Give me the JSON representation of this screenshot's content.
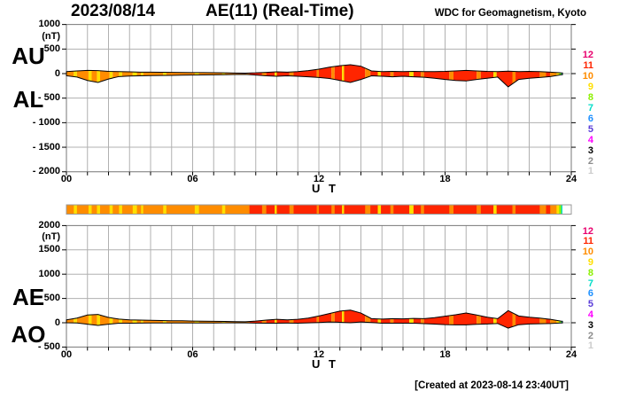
{
  "header": {
    "date": "2023/08/14",
    "title": "AE(11) (Real-Time)",
    "credit": "WDC for Geomagnetism, Kyoto"
  },
  "footer": {
    "created": "[Created at 2023-08-14 23:40UT]"
  },
  "station_legend": {
    "counts": [
      12,
      11,
      10,
      9,
      8,
      7,
      6,
      5,
      4,
      3,
      2,
      1
    ]
  },
  "station_colors": {
    "12": "#e8006e",
    "11": "#ff2500",
    "10": "#ff8c00",
    "9": "#ffdf00",
    "8": "#8cf000",
    "7": "#00ddc8",
    "6": "#1e90ff",
    "5": "#5a3cd8",
    "4": "#ff00ff",
    "3": "#000000",
    "2": "#8c8c8c",
    "1": "#cccccc",
    "0": "#ffffff"
  },
  "stations_timeline": [
    [
      0.0,
      0.35,
      10
    ],
    [
      0.35,
      0.5,
      9
    ],
    [
      0.5,
      1.05,
      10
    ],
    [
      1.05,
      1.2,
      9
    ],
    [
      1.2,
      1.45,
      10
    ],
    [
      1.45,
      1.6,
      9
    ],
    [
      1.6,
      2.05,
      10
    ],
    [
      2.05,
      2.2,
      9
    ],
    [
      2.2,
      2.5,
      10
    ],
    [
      2.5,
      2.65,
      9
    ],
    [
      2.65,
      3.15,
      10
    ],
    [
      3.15,
      3.35,
      9
    ],
    [
      3.35,
      3.55,
      10
    ],
    [
      3.55,
      3.65,
      9
    ],
    [
      3.65,
      4.6,
      10
    ],
    [
      4.6,
      4.75,
      9
    ],
    [
      4.75,
      6.1,
      10
    ],
    [
      6.1,
      6.3,
      9
    ],
    [
      6.3,
      7.4,
      10
    ],
    [
      7.4,
      7.55,
      9
    ],
    [
      7.55,
      8.7,
      10
    ],
    [
      8.7,
      9.3,
      11
    ],
    [
      9.3,
      9.5,
      10
    ],
    [
      9.5,
      9.9,
      11
    ],
    [
      9.9,
      10.0,
      9
    ],
    [
      10.0,
      10.6,
      11
    ],
    [
      10.6,
      10.8,
      10
    ],
    [
      10.8,
      11.9,
      11
    ],
    [
      11.9,
      12.0,
      10
    ],
    [
      12.0,
      12.6,
      11
    ],
    [
      12.6,
      12.75,
      10
    ],
    [
      12.75,
      13.1,
      11
    ],
    [
      13.1,
      13.2,
      9
    ],
    [
      13.2,
      14.2,
      11
    ],
    [
      14.2,
      14.45,
      10
    ],
    [
      14.45,
      14.8,
      11
    ],
    [
      14.8,
      14.95,
      9
    ],
    [
      14.95,
      15.4,
      11
    ],
    [
      15.4,
      15.55,
      10
    ],
    [
      15.55,
      16.3,
      11
    ],
    [
      16.3,
      16.5,
      9
    ],
    [
      16.5,
      16.85,
      11
    ],
    [
      16.85,
      17.0,
      10
    ],
    [
      17.0,
      18.2,
      11
    ],
    [
      18.2,
      18.4,
      10
    ],
    [
      18.4,
      19.5,
      11
    ],
    [
      19.5,
      19.7,
      10
    ],
    [
      19.7,
      20.3,
      11
    ],
    [
      20.3,
      20.45,
      9
    ],
    [
      20.45,
      21.2,
      11
    ],
    [
      21.2,
      21.35,
      10
    ],
    [
      21.35,
      22.5,
      11
    ],
    [
      22.5,
      22.8,
      10
    ],
    [
      22.8,
      23.0,
      11
    ],
    [
      23.0,
      23.3,
      10
    ],
    [
      23.3,
      23.42,
      9
    ],
    [
      23.42,
      23.52,
      8
    ],
    [
      23.52,
      23.58,
      7
    ],
    [
      23.58,
      24.0,
      0
    ]
  ],
  "chart_data": [
    {
      "type": "area",
      "name": "AU-AL",
      "left_labels": [
        "AU",
        "AL"
      ],
      "unit": "(nT)",
      "xlabel": "U T",
      "x_ticks": [
        "00",
        "06",
        "12",
        "18",
        "24"
      ],
      "x_tick_values": [
        0,
        6,
        12,
        18,
        24
      ],
      "x_range": [
        0,
        24
      ],
      "y_ticks": [
        "1000",
        "500",
        "0",
        "- 500",
        "- 1000",
        "- 1500",
        "- 2000"
      ],
      "y_tick_values": [
        1000,
        500,
        0,
        -500,
        -1000,
        -1500,
        -2000
      ],
      "y_range": [
        -2000,
        1000
      ],
      "grid": true,
      "sample_step_hours": 0.5,
      "series": [
        {
          "name": "AU",
          "values": [
            40,
            55,
            65,
            60,
            45,
            40,
            35,
            30,
            30,
            28,
            25,
            22,
            20,
            20,
            18,
            15,
            12,
            10,
            15,
            25,
            35,
            30,
            40,
            60,
            90,
            130,
            160,
            180,
            150,
            55,
            40,
            45,
            40,
            45,
            40,
            40,
            45,
            55,
            65,
            55,
            45,
            40,
            50,
            40,
            45,
            40,
            30,
            15,
            8
          ]
        },
        {
          "name": "AL",
          "values": [
            -45,
            -70,
            -140,
            -180,
            -110,
            -60,
            -50,
            -45,
            -40,
            -38,
            -35,
            -32,
            -30,
            -28,
            -25,
            -22,
            -18,
            -15,
            -30,
            -45,
            -55,
            -45,
            -55,
            -65,
            -80,
            -100,
            -140,
            -180,
            -120,
            -45,
            -55,
            -65,
            -55,
            -65,
            -75,
            -95,
            -120,
            -140,
            -150,
            -120,
            -95,
            -70,
            -270,
            -120,
            -95,
            -80,
            -60,
            -25,
            -8
          ]
        }
      ]
    },
    {
      "type": "area",
      "name": "AE-AO",
      "left_labels": [
        "AE",
        "AO"
      ],
      "unit": "(nT)",
      "xlabel": "U T",
      "x_ticks": [
        "00",
        "06",
        "12",
        "18",
        "24"
      ],
      "x_tick_values": [
        0,
        6,
        12,
        18,
        24
      ],
      "x_range": [
        0,
        24
      ],
      "y_ticks": [
        "2000",
        "1500",
        "1000",
        "500",
        "0",
        "- 500"
      ],
      "y_tick_values": [
        2000,
        1500,
        1000,
        500,
        0,
        -500
      ],
      "y_range": [
        -500,
        2000
      ],
      "grid": true,
      "sample_step_hours": 0.5,
      "series": [
        {
          "name": "AE",
          "values": [
            60,
            95,
            160,
            170,
            110,
            75,
            60,
            55,
            50,
            45,
            42,
            40,
            35,
            33,
            30,
            28,
            22,
            20,
            35,
            55,
            70,
            60,
            70,
            95,
            140,
            190,
            240,
            260,
            200,
            85,
            75,
            85,
            80,
            90,
            85,
            105,
            135,
            165,
            200,
            160,
            115,
            85,
            250,
            140,
            115,
            95,
            70,
            35,
            12
          ]
        },
        {
          "name": "AO",
          "values": [
            0,
            -5,
            -30,
            -55,
            -30,
            -10,
            -8,
            -6,
            -5,
            -5,
            -4,
            -5,
            -5,
            -4,
            -4,
            -3,
            -3,
            -2,
            -7,
            -10,
            -10,
            -7,
            -8,
            -3,
            5,
            15,
            10,
            0,
            15,
            5,
            -8,
            -10,
            -8,
            -10,
            -18,
            -28,
            -38,
            -43,
            -43,
            -33,
            -25,
            -15,
            -110,
            -40,
            -25,
            -20,
            -15,
            -5,
            0
          ]
        }
      ]
    }
  ]
}
